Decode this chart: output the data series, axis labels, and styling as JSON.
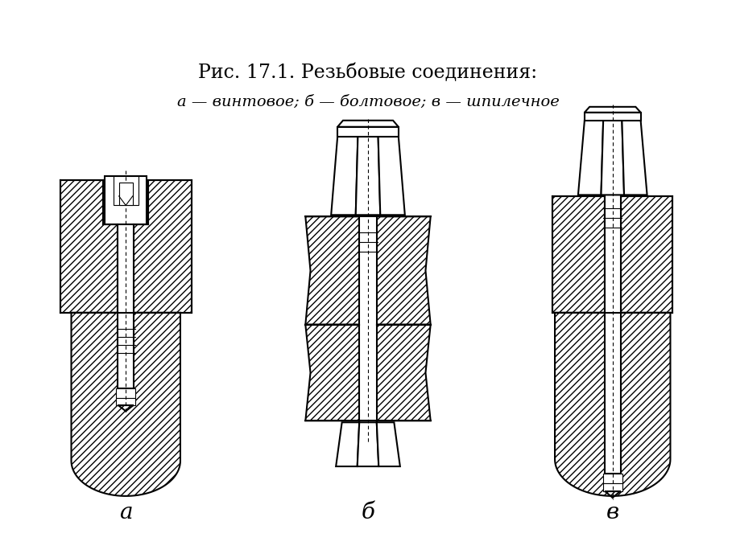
{
  "title_line1": "Рис. 17.1. Резьбовые соединения:",
  "title_line2": "а — винтовое; б — болтовое; в — шпилечное",
  "label_a": "а",
  "label_b": "б",
  "label_v": "в",
  "bg_color": "#ffffff",
  "line_color": "#000000",
  "figsize": [
    9.14,
    6.84
  ],
  "dpi": 100
}
